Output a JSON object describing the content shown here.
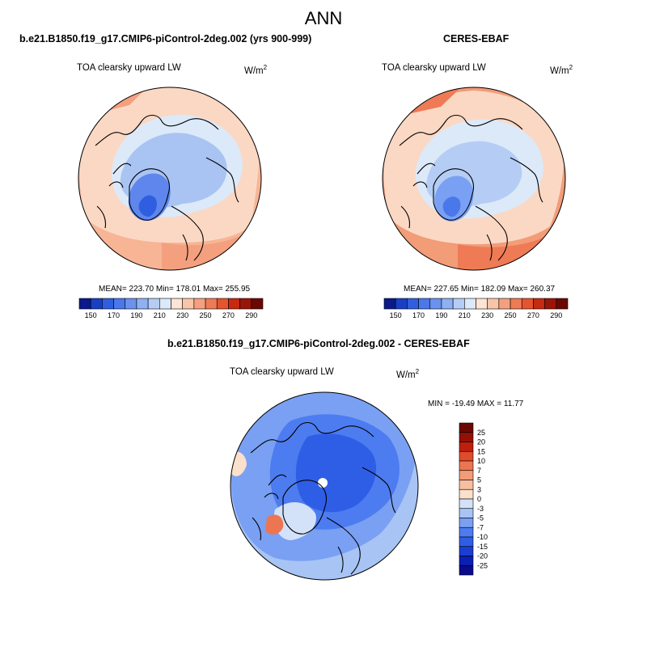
{
  "title": "ANN",
  "panels": [
    {
      "title": "b.e21.B1850.f19_g17.CMIP6-piControl-2deg.002 (yrs 900-999)",
      "variable": "TOA clearsky upward LW",
      "units_base": "W/m",
      "units_exp": "2",
      "stats": "MEAN= 223.70  Min= 178.01  Max= 255.95"
    },
    {
      "title": "CERES-EBAF",
      "variable": "TOA clearsky upward LW",
      "units_base": "W/m",
      "units_exp": "2",
      "stats": "MEAN= 227.65  Min= 182.09  Max= 260.37"
    },
    {
      "title": "b.e21.B1850.f19_g17.CMIP6-piControl-2deg.002 - CERES-EBAF",
      "variable": "TOA clearsky upward LW",
      "units_base": "W/m",
      "units_exp": "2",
      "stats": "MIN = -19.49 MAX =  11.77"
    }
  ],
  "chart_data": [
    {
      "type": "heatmap",
      "projection": "north polar stereographic",
      "title": "b.e21.B1850.f19_g17.CMIP6-piControl-2deg.002 (yrs 900-999)",
      "variable": "TOA clearsky upward LW",
      "stats": {
        "mean": 223.7,
        "min": 178.01,
        "max": 255.95
      },
      "colorbar": {
        "orientation": "horizontal",
        "levels": [
          150,
          160,
          170,
          180,
          190,
          200,
          210,
          220,
          230,
          240,
          250,
          260,
          270,
          280,
          290
        ],
        "tick_labels": [
          "150",
          "170",
          "190",
          "210",
          "230",
          "250",
          "270",
          "290"
        ],
        "colors": [
          "#0a1a8c",
          "#1a3fc4",
          "#2f5fe0",
          "#4a78ea",
          "#6b92ee",
          "#8fb0f2",
          "#b5cdf5",
          "#dce9f8",
          "#fde4d4",
          "#f9c4a8",
          "#f4a07e",
          "#ee7b55",
          "#e5542e",
          "#c62a10",
          "#9a1408",
          "#6a0804"
        ]
      }
    },
    {
      "type": "heatmap",
      "projection": "north polar stereographic",
      "title": "CERES-EBAF",
      "variable": "TOA clearsky upward LW",
      "stats": {
        "mean": 227.65,
        "min": 182.09,
        "max": 260.37
      },
      "colorbar": {
        "orientation": "horizontal",
        "levels": [
          150,
          160,
          170,
          180,
          190,
          200,
          210,
          220,
          230,
          240,
          250,
          260,
          270,
          280,
          290
        ],
        "tick_labels": [
          "150",
          "170",
          "190",
          "210",
          "230",
          "250",
          "270",
          "290"
        ],
        "colors": [
          "#0a1a8c",
          "#1a3fc4",
          "#2f5fe0",
          "#4a78ea",
          "#6b92ee",
          "#8fb0f2",
          "#b5cdf5",
          "#dce9f8",
          "#fde4d4",
          "#f9c4a8",
          "#f4a07e",
          "#ee7b55",
          "#e5542e",
          "#c62a10",
          "#9a1408",
          "#6a0804"
        ]
      }
    },
    {
      "type": "heatmap",
      "projection": "north polar stereographic",
      "title": "b.e21.B1850.f19_g17.CMIP6-piControl-2deg.002 - CERES-EBAF",
      "variable": "TOA clearsky upward LW",
      "stats": {
        "min": -19.49,
        "max": 11.77
      },
      "colorbar": {
        "orientation": "vertical",
        "levels": [
          -25,
          -20,
          -15,
          -10,
          -7,
          -5,
          -3,
          0,
          3,
          5,
          7,
          10,
          15,
          20,
          25
        ],
        "tick_labels": [
          "-25",
          "-20",
          "-15",
          "-10",
          "-7",
          "-5",
          "-3",
          "0",
          "3",
          "5",
          "7",
          "10",
          "15",
          "20",
          "25"
        ],
        "colors": [
          "#0a0a8c",
          "#0a1fb4",
          "#1a3ed2",
          "#2f5ee6",
          "#4d7cf0",
          "#7aa0f3",
          "#a8c4f5",
          "#d3e2f8",
          "#fbe0cc",
          "#f7bf9f",
          "#f29c78",
          "#ec7552",
          "#e14b2a",
          "#c01f0e",
          "#941006",
          "#6a0804"
        ]
      }
    }
  ]
}
